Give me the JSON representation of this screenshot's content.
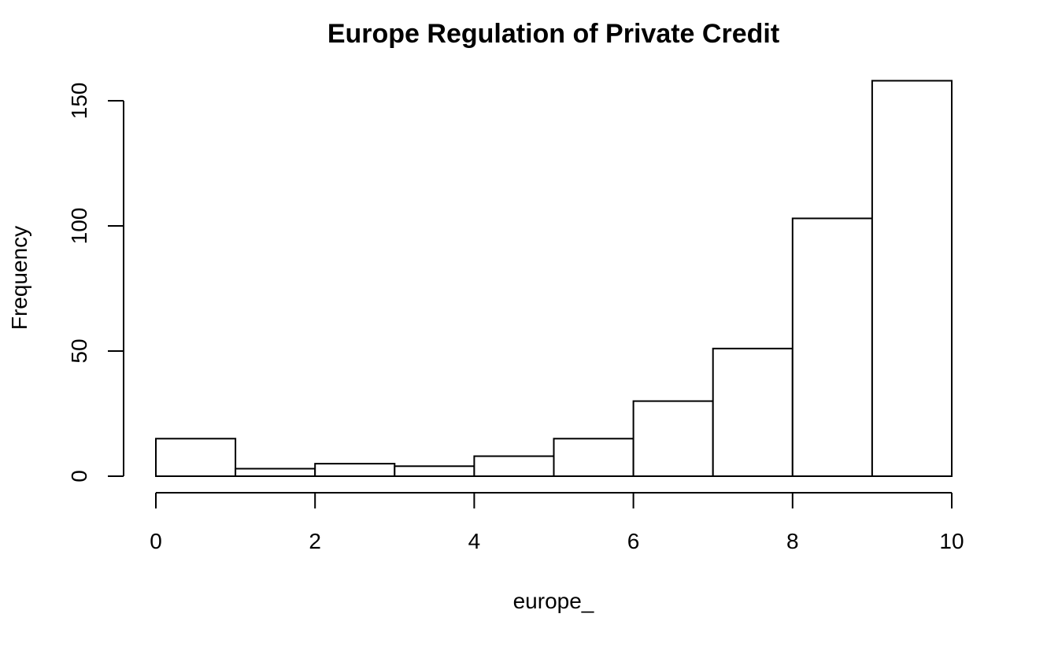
{
  "chart_data": {
    "type": "bar",
    "title": "Europe Regulation of Private Credit",
    "xlabel": "europe_",
    "ylabel": "Frequency",
    "bins": [
      {
        "x0": 0,
        "x1": 1,
        "count": 15
      },
      {
        "x0": 1,
        "x1": 2,
        "count": 3
      },
      {
        "x0": 2,
        "x1": 3,
        "count": 5
      },
      {
        "x0": 3,
        "x1": 4,
        "count": 4
      },
      {
        "x0": 4,
        "x1": 5,
        "count": 8
      },
      {
        "x0": 5,
        "x1": 6,
        "count": 15
      },
      {
        "x0": 6,
        "x1": 7,
        "count": 30
      },
      {
        "x0": 7,
        "x1": 8,
        "count": 51
      },
      {
        "x0": 8,
        "x1": 9,
        "count": 103
      },
      {
        "x0": 9,
        "x1": 10,
        "count": 158
      }
    ],
    "xlim": [
      0,
      10
    ],
    "ylim": [
      0,
      158
    ],
    "xticks": [
      0,
      2,
      4,
      6,
      8,
      10
    ],
    "yticks": [
      0,
      50,
      100,
      150
    ],
    "grid": false,
    "colors": {
      "bar_fill": "#ffffff",
      "bar_stroke": "#000000"
    }
  }
}
